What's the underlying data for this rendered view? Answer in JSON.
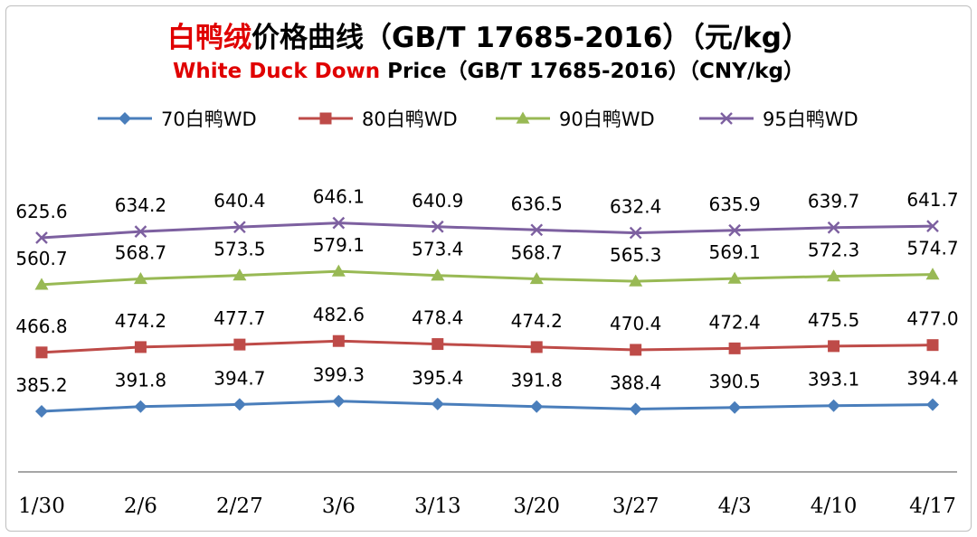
{
  "chart_data": {
    "type": "line",
    "title_part1_red": "白鸭绒",
    "title_part1_rest": "价格曲线（GB/T 17685-2016）（元/kg）",
    "title_part2_red": "White Duck Down",
    "title_part2_rest": " Price（GB/T 17685-2016）（CNY/kg）",
    "categories": [
      "1/30",
      "2/6",
      "2/27",
      "3/6",
      "3/13",
      "3/20",
      "3/27",
      "4/3",
      "4/10",
      "4/17"
    ],
    "series": [
      {
        "name": "70白鸭WD",
        "color": "#4a7ebb",
        "marker": "diamond",
        "values": [
          385.2,
          391.8,
          394.7,
          399.3,
          395.4,
          391.8,
          388.4,
          390.5,
          393.1,
          394.4
        ]
      },
      {
        "name": "80白鸭WD",
        "color": "#be4b48",
        "marker": "square",
        "values": [
          466.8,
          474.2,
          477.7,
          482.6,
          478.4,
          474.2,
          470.4,
          472.4,
          475.5,
          477.0
        ]
      },
      {
        "name": "90白鸭WD",
        "color": "#98b954",
        "marker": "triangle",
        "values": [
          560.7,
          568.7,
          573.5,
          579.1,
          573.4,
          568.7,
          565.3,
          569.1,
          572.3,
          574.7
        ]
      },
      {
        "name": "95白鸭WD",
        "color": "#7d60a0",
        "marker": "x",
        "values": [
          625.6,
          634.2,
          640.4,
          646.1,
          640.9,
          636.5,
          632.4,
          635.9,
          639.7,
          641.7
        ]
      }
    ],
    "legend_position": "top",
    "grid": false
  }
}
